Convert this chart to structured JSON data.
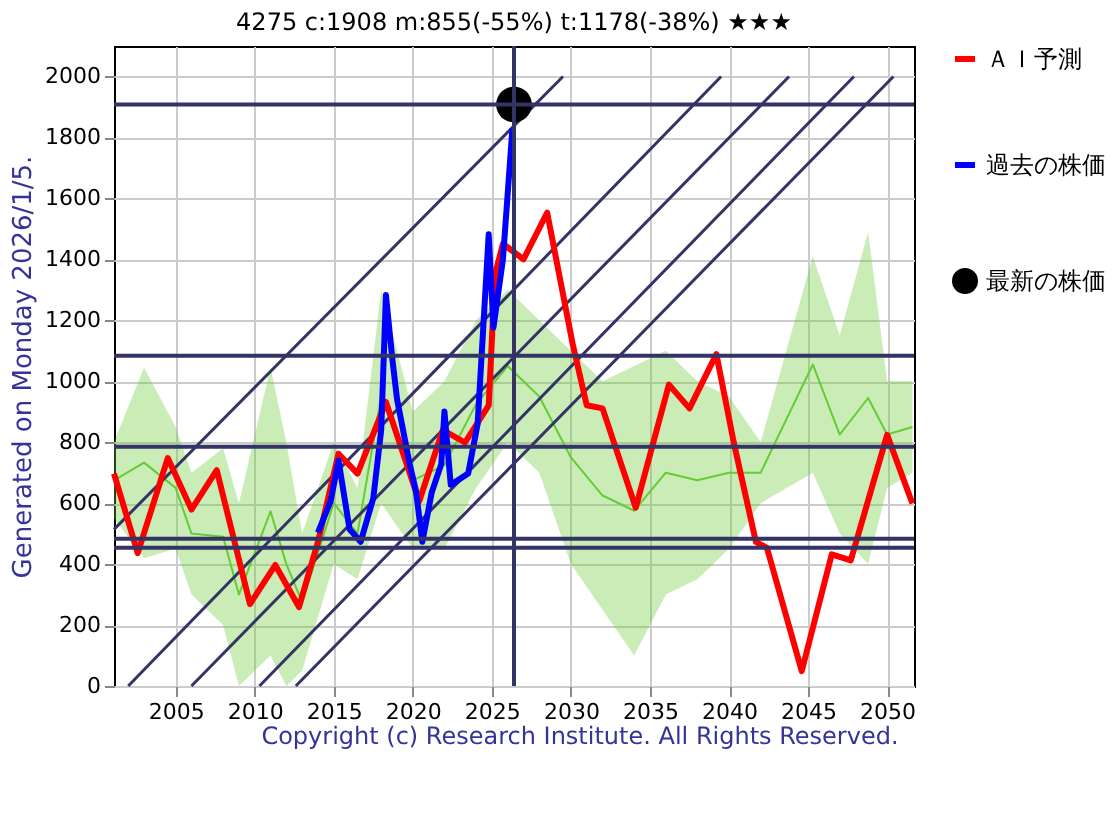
{
  "chart_data": {
    "type": "line",
    "title": "4275   c:1908   m:855(-55%)   t:1178(-38%)   ★★★",
    "ylabel": "Generated on Monday 2026/1/5.",
    "annotations": [
      "Copyright (c) Research Institute. All Rights Reserved."
    ],
    "xlim": [
      2001.1,
      2051.7
    ],
    "xticks": [
      2005,
      2010,
      2015,
      2020,
      2025,
      2030,
      2035,
      2040,
      2045,
      2050
    ],
    "ylim": [
      0,
      2100
    ],
    "yticks": [
      0,
      200,
      400,
      600,
      800,
      1000,
      1200,
      1400,
      1600,
      1800,
      2000
    ],
    "grid": true,
    "legend": "right",
    "series": [
      {
        "color": "#66cc33",
        "x": [
          2001.1,
          2003,
          2005,
          2006,
          2008,
          2009,
          2011,
          2012,
          2013,
          2015,
          2016.5,
          2018,
          2020,
          2022,
          2024,
          2026,
          2028,
          2030,
          2032,
          2034,
          2036,
          2038,
          2040,
          2042,
          2045.3,
          2047,
          2048.8,
          2050,
          2051.6
        ],
        "values": [
          675,
          733,
          650,
          500,
          490,
          300,
          573,
          400,
          275,
          600,
          500,
          950,
          675,
          725,
          925,
          1050,
          950,
          750,
          625,
          575,
          700,
          675,
          700,
          700,
          1055,
          825,
          945,
          825,
          850
        ],
        "lower": [
          550,
          420,
          450,
          300,
          200,
          0,
          100,
          0,
          50,
          400,
          350,
          600,
          450,
          450,
          650,
          800,
          700,
          400,
          250,
          100,
          300,
          350,
          450,
          600,
          700,
          500,
          400,
          650,
          700
        ],
        "upper": [
          800,
          1045,
          850,
          700,
          780,
          600,
          1045,
          800,
          500,
          800,
          650,
          1300,
          900,
          1000,
          1200,
          1300,
          1200,
          1100,
          1000,
          1050,
          1100,
          1000,
          950,
          800,
          1410,
          1150,
          1490,
          1000,
          1000
        ]
      },
      {
        "color": "#333366",
        "x": [
          2001.1,
          2029.5
        ],
        "values": [
          514,
          2000
        ]
      },
      {
        "color": "#333366",
        "x": [
          2002.0,
          2039.5
        ],
        "values": [
          0,
          2000
        ]
      },
      {
        "color": "#333366",
        "x": [
          2006.0,
          2043.8
        ],
        "values": [
          0,
          2000
        ]
      },
      {
        "color": "#333366",
        "x": [
          2010.3,
          2047.9
        ],
        "values": [
          0,
          2000
        ]
      },
      {
        "color": "#333366",
        "x": [
          2012.6,
          2050.4
        ],
        "values": [
          0,
          2000
        ]
      },
      {
        "name": "ＡＩ予測",
        "color": "#ff0000",
        "x": [
          2001.1,
          2002.6,
          2004.5,
          2006.0,
          2007.6,
          2009.7,
          2011.3,
          2012.8,
          2014.0,
          2015.3,
          2016.5,
          2018.3,
          2020.4,
          2021.9,
          2023.3,
          2024.8,
          2025.2,
          2025.7,
          2027.0,
          2028.5,
          2030.1,
          2031.0,
          2032.0,
          2034.1,
          2036.2,
          2037.5,
          2039.2,
          2040.3,
          2041.7,
          2042.4,
          2044.6,
          2046.5,
          2047.7,
          2050.0,
          2051.6
        ],
        "values": [
          697,
          436,
          748,
          579,
          708,
          269,
          397,
          259,
          473,
          762,
          697,
          932,
          606,
          840,
          799,
          921,
          1350,
          1451,
          1400,
          1553,
          1125,
          921,
          911,
          585,
          989,
          911,
          1089,
          799,
          473,
          453,
          49,
          432,
          412,
          824,
          599
        ]
      },
      {
        "name": "過去の株価",
        "color": "#0000ff",
        "x": [
          2014.0,
          2014.8,
          2015.3,
          2016.0,
          2016.7,
          2017.5,
          2018.0,
          2018.3,
          2018.7,
          2019.0,
          2019.8,
          2020.2,
          2020.6,
          2021.2,
          2021.8,
          2022.0,
          2022.4,
          2023.5,
          2024.1,
          2024.8,
          2025.1,
          2025.7,
          2026.3
        ],
        "values": [
          503,
          606,
          740,
          514,
          473,
          616,
          840,
          1283,
          1075,
          942,
          728,
          640,
          473,
          636,
          728,
          901,
          660,
          697,
          860,
          1482,
          1176,
          1400,
          1829
        ]
      },
      {
        "type": "scatter",
        "name": "最新の株価",
        "color": "#000000",
        "marker": "circle",
        "x": [
          2026.4
        ],
        "values": [
          1908
        ]
      }
    ],
    "ref_lines": [
      {
        "axis": "y",
        "value": 1908,
        "color": "#333366"
      },
      {
        "axis": "y",
        "value": 1084,
        "color": "#333366"
      },
      {
        "axis": "y",
        "value": 785,
        "color": "#333366"
      },
      {
        "axis": "y",
        "value": 483,
        "color": "#333366"
      },
      {
        "axis": "y",
        "value": 454,
        "color": "#333366"
      },
      {
        "axis": "x",
        "value": 2026.4,
        "color": "#333366"
      }
    ]
  }
}
